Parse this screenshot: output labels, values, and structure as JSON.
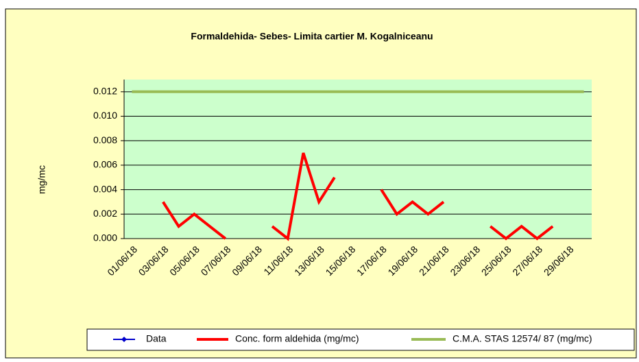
{
  "chart_data": {
    "type": "line",
    "title": "Formaldehida- Sebes- Limita cartier M. Kogalniceanu",
    "y_label": "mg/mc",
    "categories": [
      "01/06/18",
      null,
      "03/06/18",
      null,
      "05/06/18",
      null,
      "07/06/18",
      null,
      "09/06/18",
      null,
      "11/06/18",
      null,
      "13/06/18",
      null,
      "15/06/18",
      null,
      "17/06/18",
      null,
      "19/06/18",
      null,
      "21/06/18",
      null,
      "23/06/18",
      null,
      "25/06/18",
      null,
      "27/06/18",
      null,
      "29/06/18",
      null
    ],
    "series": [
      {
        "name": "Data",
        "color": "#0000cc",
        "values": [
          null,
          null,
          null,
          null,
          null,
          null,
          null,
          null,
          null,
          null,
          null,
          null,
          null,
          null,
          null,
          null,
          null,
          null,
          null,
          null,
          null,
          null,
          null,
          null,
          null,
          null,
          null,
          null,
          null,
          null
        ]
      },
      {
        "name": "Conc. form aldehida (mg/mc)",
        "color": "#ff0000",
        "values": [
          null,
          null,
          0.003,
          0.001,
          0.002,
          0.001,
          0,
          null,
          null,
          0.001,
          0,
          0.007,
          0.003,
          0.005,
          null,
          null,
          0.004,
          0.002,
          0.003,
          0.002,
          0.003,
          null,
          null,
          0.001,
          0,
          0.001,
          0,
          0.001,
          null,
          null
        ]
      },
      {
        "name": "C.M.A. STAS 12574/ 87 (mg/mc)",
        "color": "#99bb55",
        "values": [
          0.012,
          0.012,
          0.012,
          0.012,
          0.012,
          0.012,
          0.012,
          0.012,
          0.012,
          0.012,
          0.012,
          0.012,
          0.012,
          0.012,
          0.012,
          0.012,
          0.012,
          0.012,
          0.012,
          0.012,
          0.012,
          0.012,
          0.012,
          0.012,
          0.012,
          0.012,
          0.012,
          0.012,
          0.012,
          0.012
        ]
      }
    ],
    "ylim": [
      0,
      0.013
    ],
    "yticks": [
      {
        "value": 0,
        "label": "0.000"
      },
      0.002,
      0.004,
      0.006,
      0.008,
      {
        "value": 0.01,
        "label": "0.010"
      },
      0.012
    ],
    "grid": true
  }
}
